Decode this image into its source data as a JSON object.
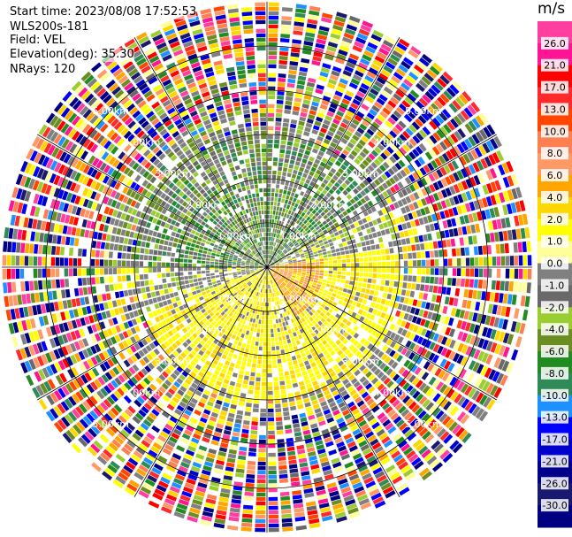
{
  "info": {
    "start_time": "Start time: 2023/08/08 17:52:53",
    "instrument": "WLS200s-181",
    "field": "Field: VEL",
    "elevation": "Elevation(deg): 35.30",
    "nrays": "NRays: 120"
  },
  "chart_data": {
    "type": "heatmap",
    "projection": "polar",
    "unit": "m/s",
    "nrays": 120,
    "max_range_km": 6.0,
    "range_ring_labels": [
      "1.00km",
      "2.00km",
      "3.00km",
      "4.00km",
      "5.00km"
    ],
    "colorbar": {
      "tick_labels": [
        "26.0",
        "21.0",
        "17.0",
        "13.0",
        "10.0",
        "8.0",
        "6.0",
        "4.0",
        "2.0",
        "1.0",
        "0.0",
        "-1.0",
        "-2.0",
        "-4.0",
        "-6.0",
        "-8.0",
        "-10.0",
        "-13.0",
        "-17.0",
        "-21.0",
        "-26.0",
        "-30.0"
      ],
      "colors": [
        "#ff3fa0",
        "#ff1493",
        "#ff0000",
        "#ff2a2a",
        "#ff4500",
        "#ff7f50",
        "#ff9966",
        "#ffa500",
        "#ffd700",
        "#ffff00",
        "#ffff99",
        "#808080",
        "#696969",
        "#9acd32",
        "#6b8e23",
        "#228b22",
        "#2e8b57",
        "#1e90ff",
        "#0000ff",
        "#0000cd",
        "#00008b",
        "#191970",
        "#000080"
      ]
    },
    "pattern": {
      "note": "",
      "inbound_sector_deg": [
        270,
        60
      ],
      "outbound_sector_deg": [
        80,
        250
      ]
    }
  }
}
